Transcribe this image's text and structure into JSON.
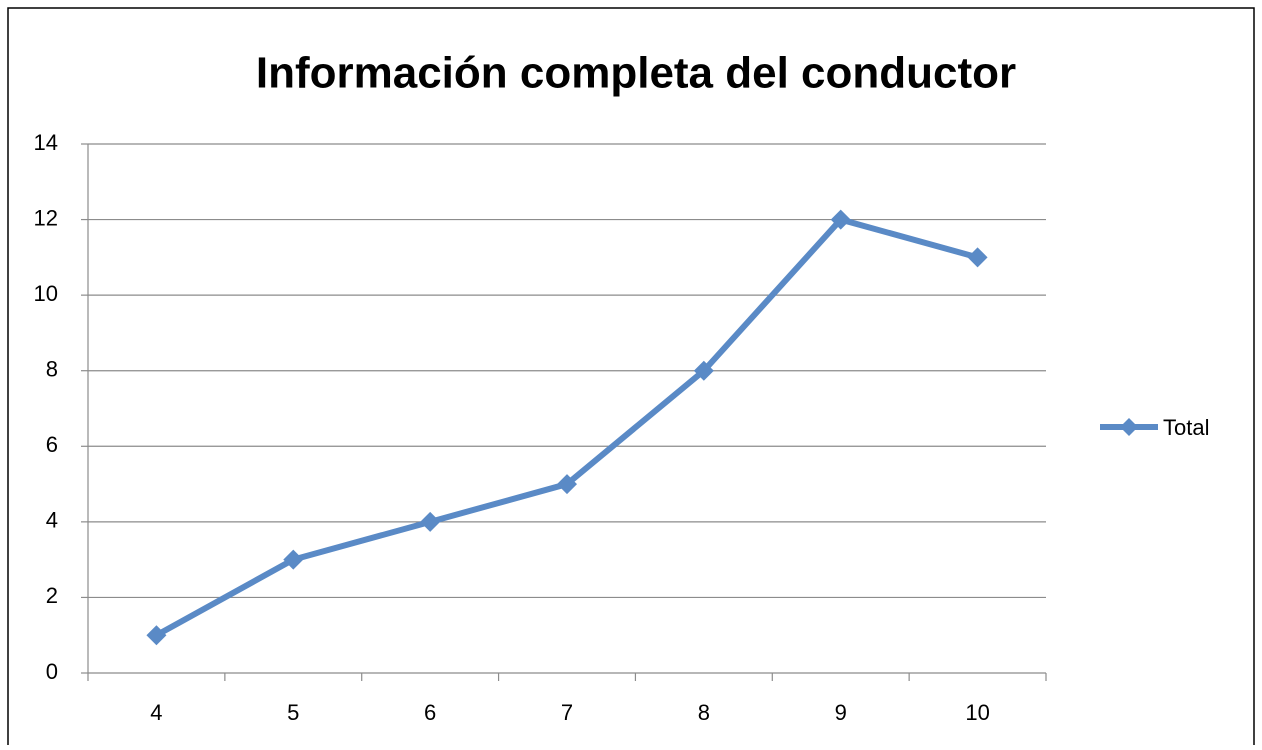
{
  "chart_data": {
    "type": "line",
    "title": "Información completa del conductor",
    "categories": [
      "4",
      "5",
      "6",
      "7",
      "8",
      "9",
      "10"
    ],
    "series": [
      {
        "name": "Total",
        "color": "#5a8ac6",
        "values": [
          1,
          3,
          4,
          5,
          8,
          12,
          11
        ]
      }
    ],
    "ylim": [
      0,
      14
    ],
    "yticks": [
      0,
      2,
      4,
      6,
      8,
      10,
      12,
      14
    ],
    "grid": true,
    "legend": "right"
  }
}
